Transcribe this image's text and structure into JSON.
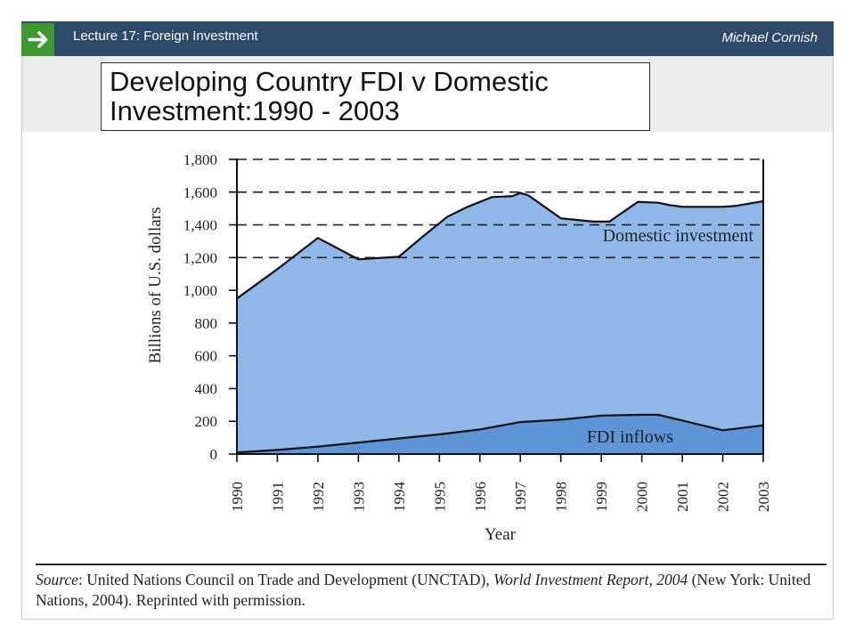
{
  "header": {
    "lecture": "Lecture 17:  Foreign Investment",
    "author": "Michael Cornish",
    "accent": "#3e9a2f",
    "bar_color": "#2e4a6b"
  },
  "slide": {
    "title_line1": "Developing  Country FDI v Domestic",
    "title_line2": "Investment:1990  - 2003"
  },
  "chart_data": {
    "type": "area",
    "x": [
      1990,
      1991,
      1992,
      1993,
      1994,
      1995,
      1996,
      1997,
      1998,
      1999,
      2000,
      2001,
      2002,
      2003
    ],
    "xlabel": "Year",
    "ylabel": "Billions of U.S. dollars",
    "ylim": [
      0,
      1800
    ],
    "yticks": [
      0,
      200,
      400,
      600,
      800,
      1000,
      1200,
      1400,
      1600,
      1800
    ],
    "ytick_labels": [
      "0",
      "200",
      "400",
      "600",
      "800",
      "1,000",
      "1,200",
      "1,400",
      "1,600",
      "1,800"
    ],
    "grid": "dashed at 1,200–1,800",
    "series": [
      {
        "name": "Domestic investment",
        "color": "#8fb8e8",
        "points": [
          [
            1990,
            950
          ],
          [
            1991,
            1130
          ],
          [
            1992,
            1320
          ],
          [
            1993,
            1190
          ],
          [
            1994,
            1205
          ],
          [
            1994.6,
            1330
          ],
          [
            1995.2,
            1450
          ],
          [
            1995.7,
            1510
          ],
          [
            1996.3,
            1570
          ],
          [
            1996.8,
            1575
          ],
          [
            1997,
            1595
          ],
          [
            1997.2,
            1580
          ],
          [
            1998,
            1440
          ],
          [
            1998.8,
            1420
          ],
          [
            1999.2,
            1420
          ],
          [
            1999.9,
            1540
          ],
          [
            2000.4,
            1535
          ],
          [
            2000.7,
            1520
          ],
          [
            2001,
            1510
          ],
          [
            2002,
            1510
          ],
          [
            2002.3,
            1515
          ],
          [
            2003,
            1545
          ]
        ]
      },
      {
        "name": "FDI inflows",
        "color": "#5d95d6",
        "points": [
          [
            1990,
            10
          ],
          [
            1991,
            25
          ],
          [
            1992,
            45
          ],
          [
            1993,
            70
          ],
          [
            1994,
            95
          ],
          [
            1995,
            120
          ],
          [
            1996,
            150
          ],
          [
            1997,
            195
          ],
          [
            1998,
            210
          ],
          [
            1999,
            235
          ],
          [
            2000,
            240
          ],
          [
            2000.4,
            240
          ],
          [
            2001,
            205
          ],
          [
            2002,
            145
          ],
          [
            2003,
            175
          ]
        ]
      }
    ]
  },
  "source": {
    "label": "Source",
    "text1": ": United Nations Council on Trade and Development (UNCTAD), ",
    "report": "World Investment Report, 2004",
    "text2": " (New York: United Nations, 2004). Reprinted with permission."
  }
}
